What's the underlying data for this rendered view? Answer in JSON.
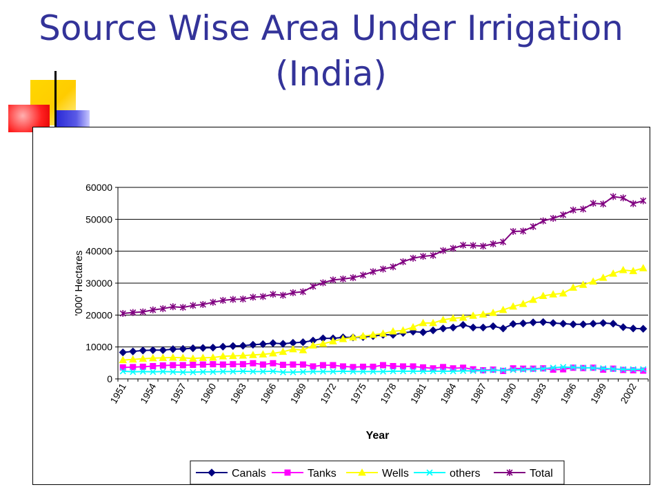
{
  "slide": {
    "title_line1": "Source Wise Area Under Irrigation",
    "title_line2": "(India)",
    "title_color": "#333399"
  },
  "chart_data": {
    "type": "line",
    "title": "",
    "xlabel": "Year",
    "ylabel": "'000' Hectares",
    "ylim": [
      0,
      60000
    ],
    "yticks": [
      0,
      10000,
      20000,
      30000,
      40000,
      50000,
      60000
    ],
    "grid": true,
    "legend": "bottom",
    "x_tick_labels": [
      "1951",
      "1954",
      "1957",
      "1960",
      "1963",
      "1966",
      "1969",
      "1972",
      "1975",
      "1978",
      "1981",
      "1984",
      "1987",
      "1990",
      "1993",
      "1996",
      "1999",
      "2002"
    ],
    "x": [
      1951,
      1952,
      1953,
      1954,
      1955,
      1956,
      1957,
      1958,
      1959,
      1960,
      1961,
      1962,
      1963,
      1964,
      1965,
      1966,
      1967,
      1968,
      1969,
      1970,
      1971,
      1972,
      1973,
      1974,
      1975,
      1976,
      1977,
      1978,
      1979,
      1980,
      1981,
      1982,
      1983,
      1984,
      1985,
      1986,
      1987,
      1988,
      1989,
      1990,
      1991,
      1992,
      1993,
      1994,
      1995,
      1996,
      1997,
      1998,
      1999,
      2000,
      2001,
      2002,
      2003
    ],
    "series": [
      {
        "name": "Canals",
        "color": "#000080",
        "marker": "diamond",
        "values": [
          8300,
          8600,
          8900,
          9000,
          9000,
          9300,
          9400,
          9600,
          9700,
          9800,
          10100,
          10300,
          10400,
          10700,
          10900,
          11200,
          11000,
          11300,
          11500,
          12000,
          12700,
          12700,
          13000,
          13000,
          13100,
          13400,
          13800,
          13800,
          14400,
          14800,
          14600,
          15200,
          15800,
          16100,
          16900,
          16100,
          16100,
          16500,
          15800,
          17200,
          17400,
          17700,
          17800,
          17500,
          17300,
          17100,
          17100,
          17300,
          17500,
          17300,
          16200,
          15800,
          15700
        ]
      },
      {
        "name": "Tanks",
        "color": "#ff00ff",
        "marker": "square",
        "values": [
          3600,
          3700,
          3800,
          4000,
          4200,
          4300,
          4300,
          4400,
          4500,
          4600,
          4500,
          4600,
          4600,
          4900,
          4500,
          4900,
          4400,
          4500,
          4500,
          3900,
          4300,
          4300,
          3900,
          3700,
          3800,
          3800,
          4300,
          4000,
          3900,
          3900,
          3600,
          3300,
          3700,
          3300,
          3500,
          3000,
          2700,
          2900,
          2500,
          3300,
          3200,
          3200,
          3300,
          2900,
          3000,
          3500,
          3400,
          3500,
          2900,
          3200,
          2800,
          2700,
          2600
        ]
      },
      {
        "name": "Wells",
        "color": "#ffff00",
        "marker": "triangle",
        "values": [
          5900,
          6100,
          6300,
          6500,
          6600,
          6700,
          6600,
          6400,
          6600,
          6700,
          7100,
          7200,
          7300,
          7500,
          7700,
          8000,
          8500,
          9300,
          9000,
          10500,
          11000,
          11800,
          12500,
          13000,
          13400,
          13800,
          14200,
          14900,
          15200,
          16200,
          17500,
          17500,
          18500,
          19000,
          19200,
          19800,
          20200,
          20700,
          21600,
          22700,
          23500,
          24800,
          26000,
          26500,
          26800,
          28600,
          29500,
          30500,
          31700,
          33000,
          34100,
          33800,
          34700
        ]
      },
      {
        "name": "others",
        "color": "#00ffff",
        "marker": "x",
        "values": [
          2400,
          2200,
          2300,
          2200,
          2300,
          2200,
          2100,
          2100,
          2200,
          2200,
          2300,
          2300,
          2400,
          2300,
          2300,
          2400,
          2100,
          2100,
          2200,
          2300,
          2300,
          2300,
          2400,
          2300,
          2300,
          2300,
          2300,
          2400,
          2400,
          2400,
          2400,
          2400,
          2400,
          2400,
          2500,
          2500,
          2600,
          2700,
          2700,
          2800,
          2900,
          3000,
          3200,
          3500,
          3700,
          3600,
          3500,
          3400,
          3300,
          3100,
          3000,
          3000,
          3000
        ]
      },
      {
        "name": "Total",
        "color": "#800080",
        "marker": "star",
        "values": [
          20500,
          20800,
          21000,
          21600,
          22000,
          22600,
          22400,
          23000,
          23300,
          24000,
          24600,
          24900,
          25000,
          25600,
          25800,
          26500,
          26200,
          27000,
          27300,
          29000,
          30100,
          31000,
          31300,
          31700,
          32500,
          33600,
          34400,
          35100,
          36700,
          37800,
          38400,
          38700,
          40200,
          40900,
          41900,
          41800,
          41600,
          42300,
          42900,
          46200,
          46300,
          47700,
          49500,
          50300,
          51400,
          52900,
          53200,
          55000,
          54800,
          57100,
          56700,
          54900,
          55800
        ]
      }
    ]
  }
}
